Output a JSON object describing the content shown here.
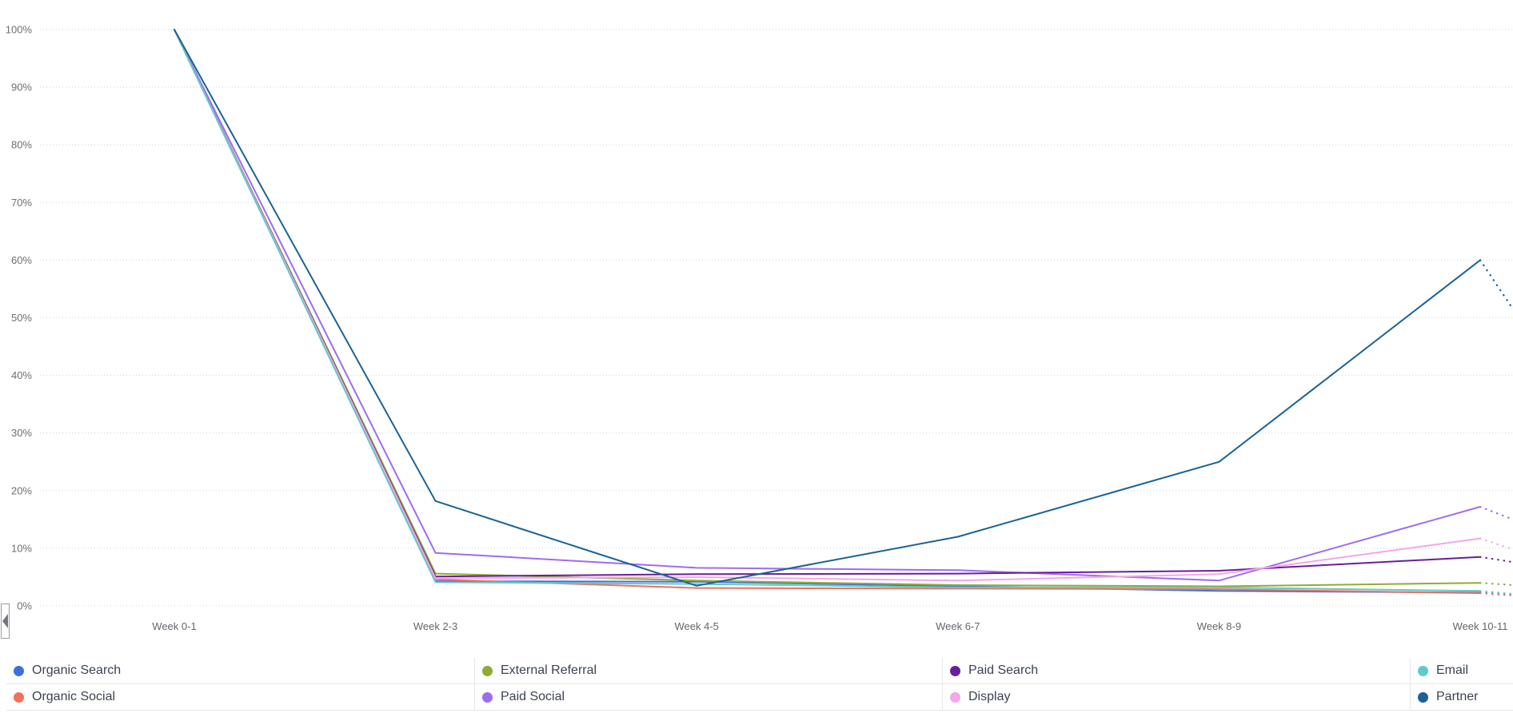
{
  "chart_data": {
    "type": "line",
    "title": "",
    "xlabel": "",
    "ylabel": "",
    "categories": [
      "Week 0-1",
      "Week 2-3",
      "Week 4-5",
      "Week 6-7",
      "Week 8-9",
      "Week 10-11"
    ],
    "y_ticks": [
      {
        "value": 0,
        "label": "0%"
      },
      {
        "value": 10,
        "label": "10%"
      },
      {
        "value": 20,
        "label": "20%"
      },
      {
        "value": 30,
        "label": "30%"
      },
      {
        "value": 40,
        "label": "40%"
      },
      {
        "value": 50,
        "label": "50%"
      },
      {
        "value": 60,
        "label": "60%"
      },
      {
        "value": 70,
        "label": "70%"
      },
      {
        "value": 80,
        "label": "80%"
      },
      {
        "value": 90,
        "label": "90%"
      },
      {
        "value": 100,
        "label": "100%"
      }
    ],
    "ylim": [
      0,
      100
    ],
    "grid": "horizontal-dotted",
    "legend_position": "bottom",
    "projection_style": "dotted segment continuing past Week 10-11 to right edge",
    "series": [
      {
        "name": "Organic Search",
        "color": "#3e6fe1",
        "values": [
          100,
          4.3,
          4.2,
          3.4,
          2.6,
          2.3
        ],
        "projection_end": 1.9
      },
      {
        "name": "Organic Social",
        "color": "#f3705a",
        "values": [
          100,
          4.6,
          3.1,
          3.0,
          2.9,
          2.2
        ],
        "projection_end": 1.8
      },
      {
        "name": "External Referral",
        "color": "#8fac30",
        "values": [
          100,
          5.6,
          4.4,
          3.6,
          3.4,
          4.0
        ],
        "projection_end": 3.6
      },
      {
        "name": "Paid Social",
        "color": "#9c6cf3",
        "values": [
          100,
          9.2,
          6.6,
          6.2,
          4.4,
          17.2
        ],
        "projection_end": 15.0
      },
      {
        "name": "Paid Search",
        "color": "#6a1d9c",
        "values": [
          100,
          5.1,
          5.5,
          5.6,
          6.1,
          8.5
        ],
        "projection_end": 7.6
      },
      {
        "name": "Display",
        "color": "#f4a6e8",
        "values": [
          100,
          4.8,
          5.0,
          4.4,
          5.5,
          11.7
        ],
        "projection_end": 9.8
      },
      {
        "name": "Email",
        "color": "#62c9c7",
        "values": [
          100,
          4.1,
          3.8,
          3.2,
          3.2,
          2.6
        ],
        "projection_end": 2.1
      },
      {
        "name": "Partner",
        "color": "#1a6295",
        "values": [
          100,
          18.2,
          3.5,
          12.0,
          25.0,
          60.0
        ],
        "projection_end": 51.5
      }
    ]
  },
  "controls": {
    "collapse_button_icon": "triangle-left"
  }
}
